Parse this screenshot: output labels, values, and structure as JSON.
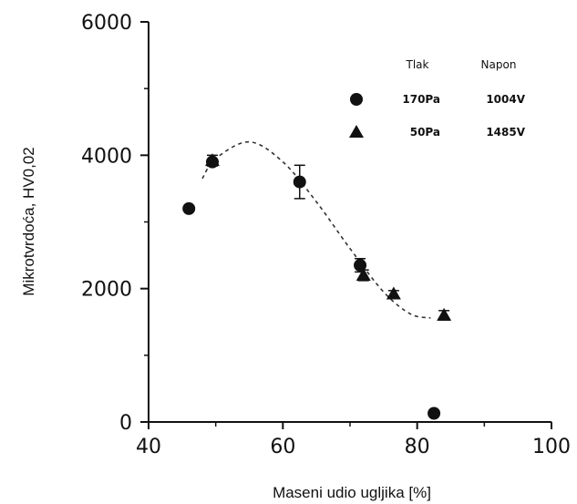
{
  "chart_data": {
    "type": "scatter",
    "title": "",
    "xlabel": "Maseni udio ugljika [%]",
    "ylabel": "Mikrotvrdoća, HV0,02",
    "xlim": [
      40,
      100
    ],
    "ylim": [
      0,
      6000
    ],
    "x_ticks": [
      "40",
      "60",
      "80",
      "100"
    ],
    "y_ticks": [
      "0",
      "2000",
      "4000",
      "6000"
    ],
    "legend": {
      "position": "top-right",
      "headers": [
        "Tlak",
        "Napon"
      ],
      "rows": [
        {
          "marker": "circle",
          "pressure": "170Pa",
          "voltage": "1004V"
        },
        {
          "marker": "triangle",
          "pressure": "50Pa",
          "voltage": "1485V"
        }
      ]
    },
    "series": [
      {
        "marker": "circle",
        "points": [
          {
            "x": 46,
            "y": 3200,
            "err": 0
          },
          {
            "x": 49.5,
            "y": 3900,
            "err": 0
          },
          {
            "x": 62.5,
            "y": 3600,
            "err": 250
          },
          {
            "x": 71.5,
            "y": 2350,
            "err": 100
          },
          {
            "x": 82.5,
            "y": 130,
            "err": 0
          }
        ]
      },
      {
        "marker": "triangle",
        "points": [
          {
            "x": 49.5,
            "y": 3920,
            "err": 80
          },
          {
            "x": 72,
            "y": 2200,
            "err": 80
          },
          {
            "x": 76.5,
            "y": 1920,
            "err": 50
          },
          {
            "x": 84,
            "y": 1600,
            "err": 70
          }
        ]
      }
    ],
    "trend_line": {
      "style": "dashed",
      "points": [
        [
          48,
          3650
        ],
        [
          50,
          3950
        ],
        [
          55,
          4200
        ],
        [
          60,
          3900
        ],
        [
          65,
          3300
        ],
        [
          70,
          2600
        ],
        [
          75,
          1950
        ],
        [
          79,
          1620
        ],
        [
          82,
          1560
        ]
      ]
    }
  }
}
